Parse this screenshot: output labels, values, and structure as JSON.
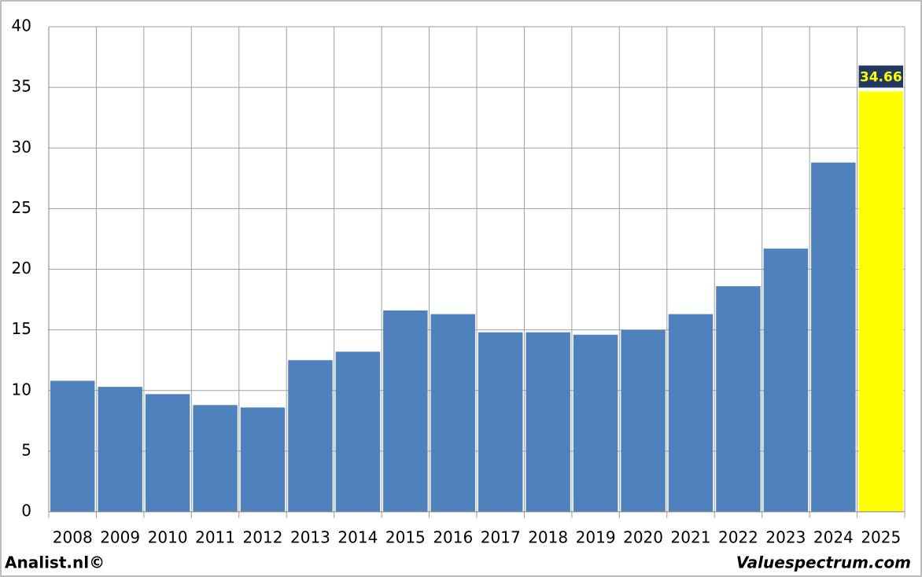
{
  "chart_data": {
    "type": "bar",
    "categories": [
      "2008",
      "2009",
      "2010",
      "2011",
      "2012",
      "2013",
      "2014",
      "2015",
      "2016",
      "2017",
      "2018",
      "2019",
      "2020",
      "2021",
      "2022",
      "2023",
      "2024",
      "2025"
    ],
    "values": [
      10.8,
      10.3,
      9.7,
      8.8,
      8.6,
      12.5,
      13.2,
      16.6,
      16.3,
      14.8,
      14.8,
      14.6,
      15.0,
      16.3,
      18.6,
      21.7,
      28.8,
      34.66
    ],
    "colors": [
      "#4f81bd",
      "#4f81bd",
      "#4f81bd",
      "#4f81bd",
      "#4f81bd",
      "#4f81bd",
      "#4f81bd",
      "#4f81bd",
      "#4f81bd",
      "#4f81bd",
      "#4f81bd",
      "#4f81bd",
      "#4f81bd",
      "#4f81bd",
      "#4f81bd",
      "#4f81bd",
      "#4f81bd",
      "#ffff00"
    ],
    "data_labels": "last",
    "ylim": [
      0,
      40
    ],
    "yticks": [
      0,
      5,
      10,
      15,
      20,
      25,
      30,
      35,
      40
    ],
    "grid": true
  },
  "footer": {
    "left": "Analist.nl©",
    "right": "Valuespectrum.com"
  }
}
